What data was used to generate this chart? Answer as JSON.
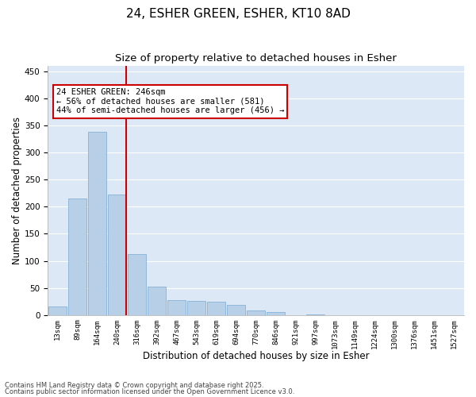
{
  "title_line1": "24, ESHER GREEN, ESHER, KT10 8AD",
  "title_line2": "Size of property relative to detached houses in Esher",
  "xlabel": "Distribution of detached houses by size in Esher",
  "ylabel": "Number of detached properties",
  "categories": [
    "13sqm",
    "89sqm",
    "164sqm",
    "240sqm",
    "316sqm",
    "392sqm",
    "467sqm",
    "543sqm",
    "619sqm",
    "694sqm",
    "770sqm",
    "846sqm",
    "921sqm",
    "997sqm",
    "1073sqm",
    "1149sqm",
    "1224sqm",
    "1300sqm",
    "1376sqm",
    "1451sqm",
    "1527sqm"
  ],
  "values": [
    16,
    215,
    338,
    222,
    113,
    53,
    27,
    26,
    25,
    19,
    8,
    5,
    0,
    1,
    0,
    0,
    0,
    0,
    0,
    0,
    0
  ],
  "bar_color": "#b8cfe8",
  "bar_edge_color": "#7aaad0",
  "vline_color": "#cc0000",
  "annotation_text": "24 ESHER GREEN: 246sqm\n← 56% of detached houses are smaller (581)\n44% of semi-detached houses are larger (456) →",
  "annotation_box_color": "#ffffff",
  "annotation_box_edge": "#cc0000",
  "ylim": [
    0,
    460
  ],
  "yticks": [
    0,
    50,
    100,
    150,
    200,
    250,
    300,
    350,
    400,
    450
  ],
  "background_color": "#dce8f5",
  "grid_color": "#ffffff",
  "footer_line1": "Contains HM Land Registry data © Crown copyright and database right 2025.",
  "footer_line2": "Contains public sector information licensed under the Open Government Licence v3.0.",
  "title_fontsize": 11,
  "subtitle_fontsize": 9.5,
  "tick_fontsize": 6.5,
  "label_fontsize": 8.5,
  "footer_fontsize": 6,
  "annotation_fontsize": 7.5
}
